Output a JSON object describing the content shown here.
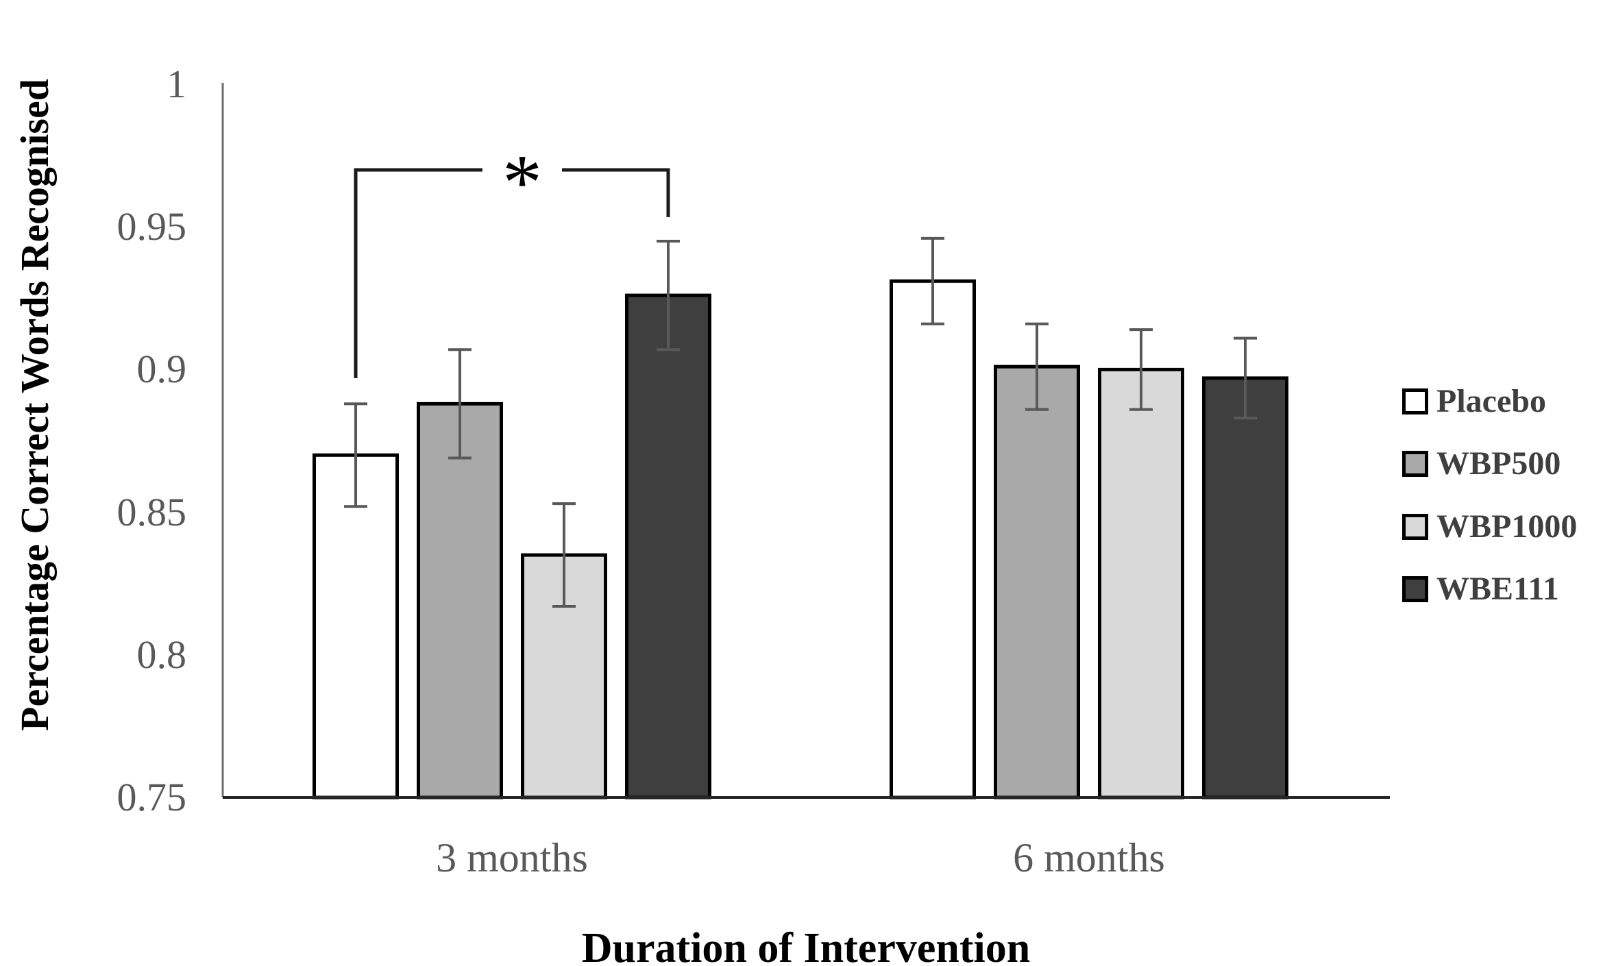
{
  "chart_data": {
    "type": "bar",
    "title": "",
    "xlabel": "Duration of Intervention",
    "ylabel": "Percentage Correct Words Recognised",
    "categories": [
      "3 months",
      "6 months"
    ],
    "series": [
      {
        "name": "Placebo",
        "fill": "#FFFFFF",
        "values": [
          0.87,
          0.931
        ],
        "errors": [
          0.018,
          0.015
        ]
      },
      {
        "name": "WBP500",
        "fill": "#A9A9A9",
        "values": [
          0.888,
          0.901
        ],
        "errors": [
          0.019,
          0.015
        ]
      },
      {
        "name": "WBP1000",
        "fill": "#D9D9D9",
        "values": [
          0.835,
          0.9
        ],
        "errors": [
          0.018,
          0.014
        ]
      },
      {
        "name": "WBE111",
        "fill": "#3F3F3F",
        "values": [
          0.926,
          0.897
        ],
        "errors": [
          0.019,
          0.014
        ]
      }
    ],
    "y_axis": {
      "min": 0.75,
      "max": 1.0,
      "step": 0.05,
      "tick_labels": [
        "1",
        "0.95",
        "0.9",
        "0.85",
        "0.8",
        "0.75"
      ]
    },
    "ylim": [
      0.75,
      1.0
    ],
    "grid": false,
    "legend_position": "right",
    "significance": {
      "label": "*",
      "category": "3 months",
      "between": [
        "Placebo",
        "WBE111"
      ]
    },
    "colors": {
      "bar_border": "#000000",
      "error_bar": "#595959",
      "y_axis_line": "#6E6E6E",
      "baseline": "#262626",
      "tick_text": "#595959",
      "title_text": "#000000",
      "legend_text": "#3F3F3F",
      "bracket": "#1A1A1A",
      "background": "#FFFFFF"
    }
  }
}
